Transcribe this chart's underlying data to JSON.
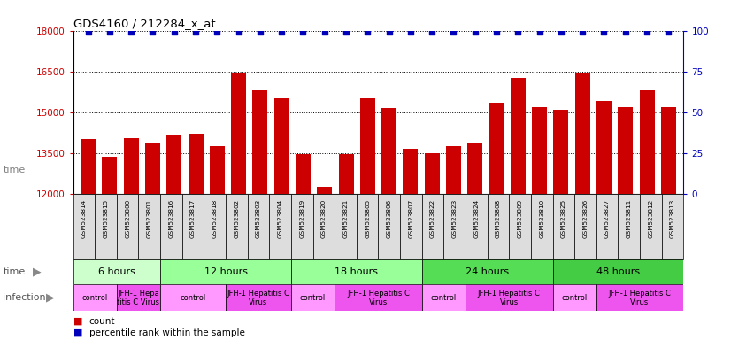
{
  "title": "GDS4160 / 212284_x_at",
  "samples": [
    "GSM523814",
    "GSM523815",
    "GSM523800",
    "GSM523801",
    "GSM523816",
    "GSM523817",
    "GSM523818",
    "GSM523802",
    "GSM523803",
    "GSM523804",
    "GSM523819",
    "GSM523820",
    "GSM523821",
    "GSM523805",
    "GSM523806",
    "GSM523807",
    "GSM523822",
    "GSM523823",
    "GSM523824",
    "GSM523808",
    "GSM523809",
    "GSM523810",
    "GSM523825",
    "GSM523826",
    "GSM523827",
    "GSM523811",
    "GSM523812",
    "GSM523813"
  ],
  "counts": [
    14000,
    13350,
    14050,
    13850,
    14150,
    14200,
    13750,
    16450,
    15800,
    15500,
    13450,
    12250,
    13450,
    15500,
    15150,
    13650,
    13500,
    13750,
    13900,
    15350,
    16250,
    15200,
    15100,
    16450,
    15400,
    15200,
    15800,
    15200
  ],
  "ylim_left": [
    12000,
    18000
  ],
  "ylim_right": [
    0,
    100
  ],
  "yticks_left": [
    12000,
    13500,
    15000,
    16500,
    18000
  ],
  "yticks_right": [
    0,
    25,
    50,
    75,
    100
  ],
  "bar_color": "#cc0000",
  "percentile_color": "#0000bb",
  "time_groups": [
    {
      "label": "6 hours",
      "start": 0,
      "end": 4,
      "color": "#ccffcc"
    },
    {
      "label": "12 hours",
      "start": 4,
      "end": 10,
      "color": "#99ff99"
    },
    {
      "label": "18 hours",
      "start": 10,
      "end": 16,
      "color": "#99ff99"
    },
    {
      "label": "24 hours",
      "start": 16,
      "end": 22,
      "color": "#55dd55"
    },
    {
      "label": "48 hours",
      "start": 22,
      "end": 28,
      "color": "#44cc44"
    }
  ],
  "infection_groups": [
    {
      "label": "control",
      "start": 0,
      "end": 2,
      "color": "#ff99ff"
    },
    {
      "label": "JFH-1 Hepa\ntitis C Virus",
      "start": 2,
      "end": 4,
      "color": "#ee55ee"
    },
    {
      "label": "control",
      "start": 4,
      "end": 7,
      "color": "#ff99ff"
    },
    {
      "label": "JFH-1 Hepatitis C\nVirus",
      "start": 7,
      "end": 10,
      "color": "#ee55ee"
    },
    {
      "label": "control",
      "start": 10,
      "end": 12,
      "color": "#ff99ff"
    },
    {
      "label": "JFH-1 Hepatitis C\nVirus",
      "start": 12,
      "end": 16,
      "color": "#ee55ee"
    },
    {
      "label": "control",
      "start": 16,
      "end": 18,
      "color": "#ff99ff"
    },
    {
      "label": "JFH-1 Hepatitis C\nVirus",
      "start": 18,
      "end": 22,
      "color": "#ee55ee"
    },
    {
      "label": "control",
      "start": 22,
      "end": 24,
      "color": "#ff99ff"
    },
    {
      "label": "JFH-1 Hepatitis C\nVirus",
      "start": 24,
      "end": 28,
      "color": "#ee55ee"
    }
  ]
}
